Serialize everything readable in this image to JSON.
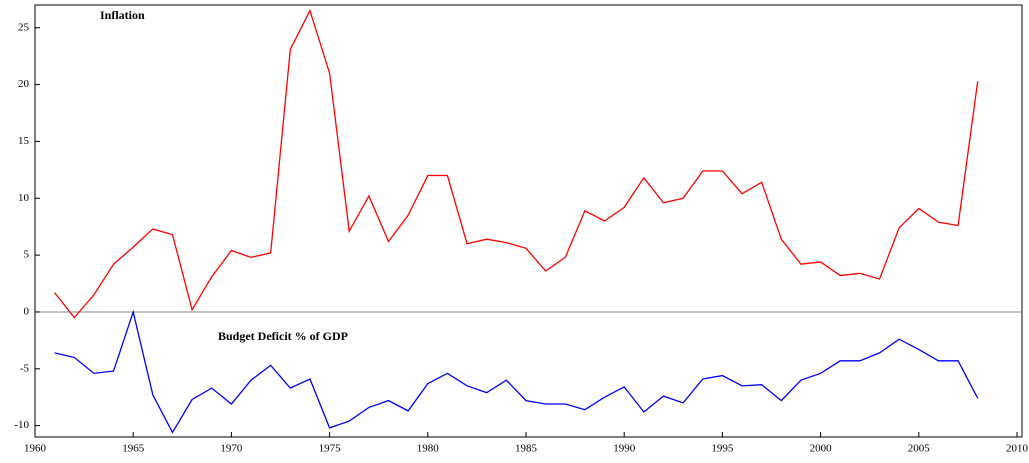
{
  "chart_data": {
    "type": "line",
    "x": [
      1961,
      1962,
      1963,
      1964,
      1965,
      1966,
      1967,
      1968,
      1969,
      1970,
      1971,
      1972,
      1973,
      1974,
      1975,
      1976,
      1977,
      1978,
      1979,
      1980,
      1981,
      1982,
      1983,
      1984,
      1985,
      1986,
      1987,
      1988,
      1989,
      1990,
      1991,
      1992,
      1993,
      1994,
      1995,
      1996,
      1997,
      1998,
      1999,
      2000,
      2001,
      2002,
      2003,
      2004,
      2005,
      2006,
      2007,
      2008
    ],
    "series": [
      {
        "name": "Inflation",
        "color": "#ff0000",
        "values": [
          1.7,
          -0.5,
          1.5,
          4.2,
          5.7,
          7.3,
          6.8,
          0.2,
          3.1,
          5.4,
          4.8,
          5.2,
          23.1,
          26.5,
          21.0,
          7.1,
          10.2,
          6.2,
          8.5,
          12.0,
          12.0,
          6.0,
          6.4,
          6.1,
          5.6,
          3.6,
          4.8,
          8.9,
          8.0,
          9.2,
          11.8,
          9.6,
          10.0,
          12.4,
          12.4,
          10.4,
          11.4,
          6.4,
          4.2,
          4.4,
          3.2,
          3.4,
          2.9,
          7.4,
          9.1,
          7.9,
          7.6,
          20.3
        ]
      },
      {
        "name": "Budget Deficit % of GDP",
        "color": "#0000ff",
        "values": [
          -3.6,
          -4.0,
          -5.4,
          -5.2,
          0.0,
          -7.3,
          -10.6,
          -7.7,
          -6.7,
          -8.1,
          -6.0,
          -4.7,
          -6.7,
          -5.9,
          -10.2,
          -9.6,
          -8.4,
          -7.8,
          -8.7,
          -6.3,
          -5.4,
          -6.5,
          -7.1,
          -6.0,
          -7.8,
          -8.1,
          -8.1,
          -8.6,
          -7.5,
          -6.6,
          -8.8,
          -7.4,
          -8.0,
          -5.9,
          -5.6,
          -6.5,
          -6.4,
          -7.8,
          -6.0,
          -5.4,
          -4.3,
          -4.3,
          -3.6,
          -2.4,
          -3.3,
          -4.3,
          -4.3,
          -7.6
        ]
      }
    ],
    "xlim": [
      1960,
      2010
    ],
    "xticks": [
      1960,
      1965,
      1970,
      1975,
      1980,
      1985,
      1990,
      1995,
      2000,
      2005,
      2010
    ],
    "ylim": [
      -11,
      27
    ],
    "yticks": [
      -10,
      -5,
      0,
      5,
      10,
      15,
      20,
      25
    ]
  }
}
